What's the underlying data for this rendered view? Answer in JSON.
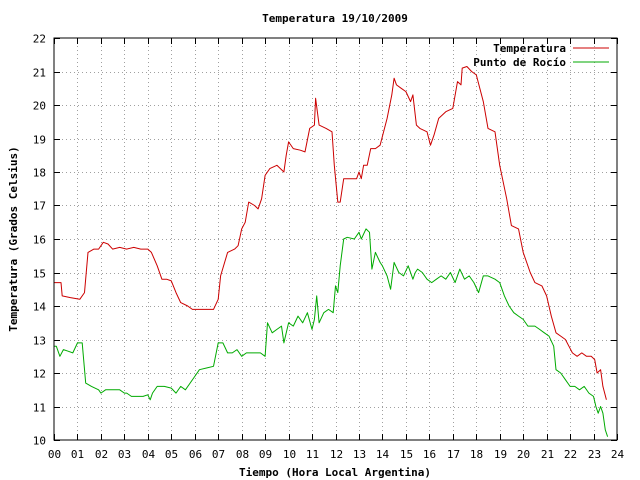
{
  "chart_data": {
    "type": "line",
    "title": "Temperatura 19/10/2009",
    "xlabel": "Tiempo (Hora Local Argentina)",
    "ylabel": "Temperatura (Grados Celsius)",
    "xlim": [
      0,
      24
    ],
    "ylim": [
      10,
      22
    ],
    "x_ticks": [
      "00",
      "01",
      "02",
      "03",
      "04",
      "05",
      "06",
      "07",
      "08",
      "09",
      "10",
      "11",
      "12",
      "13",
      "14",
      "15",
      "16",
      "17",
      "18",
      "19",
      "20",
      "21",
      "22",
      "23",
      "24"
    ],
    "y_ticks": [
      "10",
      "11",
      "12",
      "13",
      "14",
      "15",
      "16",
      "17",
      "18",
      "19",
      "20",
      "21",
      "22"
    ],
    "grid": true,
    "legend_position": "top-right",
    "series": [
      {
        "name": "Temperatura",
        "color": "#cc0000",
        "points": [
          [
            0.0,
            14.7
          ],
          [
            0.3,
            14.7
          ],
          [
            0.35,
            14.3
          ],
          [
            0.7,
            14.25
          ],
          [
            1.1,
            14.2
          ],
          [
            1.3,
            14.4
          ],
          [
            1.45,
            15.6
          ],
          [
            1.7,
            15.7
          ],
          [
            1.9,
            15.7
          ],
          [
            2.1,
            15.9
          ],
          [
            2.3,
            15.85
          ],
          [
            2.5,
            15.7
          ],
          [
            2.8,
            15.75
          ],
          [
            3.1,
            15.7
          ],
          [
            3.4,
            15.75
          ],
          [
            3.7,
            15.7
          ],
          [
            4.0,
            15.7
          ],
          [
            4.15,
            15.6
          ],
          [
            4.4,
            15.2
          ],
          [
            4.6,
            14.8
          ],
          [
            4.8,
            14.8
          ],
          [
            5.0,
            14.75
          ],
          [
            5.2,
            14.4
          ],
          [
            5.4,
            14.1
          ],
          [
            5.7,
            14.0
          ],
          [
            5.9,
            13.9
          ],
          [
            6.2,
            13.9
          ],
          [
            6.5,
            13.9
          ],
          [
            6.8,
            13.9
          ],
          [
            7.0,
            14.2
          ],
          [
            7.1,
            14.9
          ],
          [
            7.4,
            15.6
          ],
          [
            7.7,
            15.7
          ],
          [
            7.85,
            15.8
          ],
          [
            8.0,
            16.3
          ],
          [
            8.15,
            16.5
          ],
          [
            8.3,
            17.1
          ],
          [
            8.55,
            17.0
          ],
          [
            8.7,
            16.9
          ],
          [
            8.85,
            17.2
          ],
          [
            9.0,
            17.9
          ],
          [
            9.2,
            18.1
          ],
          [
            9.5,
            18.2
          ],
          [
            9.65,
            18.1
          ],
          [
            9.8,
            18.0
          ],
          [
            9.9,
            18.5
          ],
          [
            10.0,
            18.9
          ],
          [
            10.2,
            18.7
          ],
          [
            10.5,
            18.65
          ],
          [
            10.7,
            18.6
          ],
          [
            10.9,
            19.3
          ],
          [
            11.1,
            19.4
          ],
          [
            11.15,
            20.2
          ],
          [
            11.3,
            19.4
          ],
          [
            11.6,
            19.3
          ],
          [
            11.85,
            19.2
          ],
          [
            11.95,
            18.2
          ],
          [
            12.1,
            17.1
          ],
          [
            12.2,
            17.1
          ],
          [
            12.35,
            17.8
          ],
          [
            12.6,
            17.8
          ],
          [
            12.9,
            17.8
          ],
          [
            13.0,
            18.0
          ],
          [
            13.1,
            17.8
          ],
          [
            13.2,
            18.2
          ],
          [
            13.35,
            18.2
          ],
          [
            13.5,
            18.7
          ],
          [
            13.7,
            18.7
          ],
          [
            13.9,
            18.8
          ],
          [
            14.2,
            19.6
          ],
          [
            14.4,
            20.3
          ],
          [
            14.5,
            20.8
          ],
          [
            14.6,
            20.6
          ],
          [
            14.8,
            20.5
          ],
          [
            15.0,
            20.4
          ],
          [
            15.2,
            20.1
          ],
          [
            15.3,
            20.3
          ],
          [
            15.45,
            19.4
          ],
          [
            15.6,
            19.3
          ],
          [
            15.9,
            19.2
          ],
          [
            16.05,
            18.8
          ],
          [
            16.2,
            19.1
          ],
          [
            16.4,
            19.6
          ],
          [
            16.7,
            19.8
          ],
          [
            17.0,
            19.9
          ],
          [
            17.2,
            20.7
          ],
          [
            17.35,
            20.6
          ],
          [
            17.4,
            21.1
          ],
          [
            17.6,
            21.15
          ],
          [
            17.8,
            21.0
          ],
          [
            18.0,
            20.9
          ],
          [
            18.3,
            20.1
          ],
          [
            18.5,
            19.3
          ],
          [
            18.8,
            19.2
          ],
          [
            19.0,
            18.2
          ],
          [
            19.3,
            17.2
          ],
          [
            19.5,
            16.4
          ],
          [
            19.8,
            16.3
          ],
          [
            20.0,
            15.6
          ],
          [
            20.3,
            15.0
          ],
          [
            20.5,
            14.7
          ],
          [
            20.8,
            14.6
          ],
          [
            21.0,
            14.3
          ],
          [
            21.2,
            13.7
          ],
          [
            21.4,
            13.2
          ],
          [
            21.6,
            13.1
          ],
          [
            21.8,
            13.0
          ],
          [
            21.95,
            12.8
          ],
          [
            22.1,
            12.6
          ],
          [
            22.3,
            12.5
          ],
          [
            22.5,
            12.6
          ],
          [
            22.7,
            12.5
          ],
          [
            22.9,
            12.5
          ],
          [
            23.05,
            12.4
          ],
          [
            23.15,
            12.0
          ],
          [
            23.3,
            12.1
          ],
          [
            23.4,
            11.6
          ],
          [
            23.55,
            11.2
          ]
        ]
      },
      {
        "name": "Punto de Rocío",
        "color": "#00aa00",
        "points": [
          [
            0.0,
            12.8
          ],
          [
            0.1,
            12.8
          ],
          [
            0.25,
            12.5
          ],
          [
            0.4,
            12.7
          ],
          [
            0.6,
            12.65
          ],
          [
            0.8,
            12.6
          ],
          [
            1.0,
            12.9
          ],
          [
            1.2,
            12.9
          ],
          [
            1.35,
            11.7
          ],
          [
            1.6,
            11.6
          ],
          [
            1.9,
            11.5
          ],
          [
            2.0,
            11.4
          ],
          [
            2.2,
            11.5
          ],
          [
            2.5,
            11.5
          ],
          [
            2.8,
            11.5
          ],
          [
            3.0,
            11.4
          ],
          [
            3.1,
            11.4
          ],
          [
            3.3,
            11.3
          ],
          [
            3.5,
            11.3
          ],
          [
            3.8,
            11.3
          ],
          [
            4.0,
            11.35
          ],
          [
            4.1,
            11.2
          ],
          [
            4.2,
            11.4
          ],
          [
            4.4,
            11.6
          ],
          [
            4.7,
            11.6
          ],
          [
            5.0,
            11.55
          ],
          [
            5.2,
            11.4
          ],
          [
            5.4,
            11.6
          ],
          [
            5.6,
            11.5
          ],
          [
            5.8,
            11.7
          ],
          [
            6.0,
            11.9
          ],
          [
            6.2,
            12.1
          ],
          [
            6.5,
            12.15
          ],
          [
            6.8,
            12.2
          ],
          [
            7.0,
            12.9
          ],
          [
            7.2,
            12.9
          ],
          [
            7.4,
            12.6
          ],
          [
            7.6,
            12.6
          ],
          [
            7.8,
            12.7
          ],
          [
            8.0,
            12.5
          ],
          [
            8.2,
            12.6
          ],
          [
            8.5,
            12.6
          ],
          [
            8.8,
            12.6
          ],
          [
            9.0,
            12.5
          ],
          [
            9.1,
            13.5
          ],
          [
            9.3,
            13.2
          ],
          [
            9.5,
            13.3
          ],
          [
            9.7,
            13.4
          ],
          [
            9.8,
            12.9
          ],
          [
            10.0,
            13.5
          ],
          [
            10.2,
            13.4
          ],
          [
            10.4,
            13.7
          ],
          [
            10.6,
            13.5
          ],
          [
            10.8,
            13.8
          ],
          [
            11.0,
            13.3
          ],
          [
            11.1,
            13.6
          ],
          [
            11.2,
            14.3
          ],
          [
            11.3,
            13.5
          ],
          [
            11.5,
            13.8
          ],
          [
            11.7,
            13.9
          ],
          [
            11.9,
            13.8
          ],
          [
            12.0,
            14.6
          ],
          [
            12.1,
            14.4
          ],
          [
            12.2,
            15.2
          ],
          [
            12.35,
            16.0
          ],
          [
            12.5,
            16.05
          ],
          [
            12.8,
            16.0
          ],
          [
            13.0,
            16.2
          ],
          [
            13.1,
            16.0
          ],
          [
            13.3,
            16.3
          ],
          [
            13.45,
            16.2
          ],
          [
            13.55,
            15.1
          ],
          [
            13.7,
            15.6
          ],
          [
            13.9,
            15.3
          ],
          [
            14.0,
            15.2
          ],
          [
            14.2,
            14.9
          ],
          [
            14.35,
            14.5
          ],
          [
            14.5,
            15.3
          ],
          [
            14.7,
            15.0
          ],
          [
            14.9,
            14.9
          ],
          [
            15.1,
            15.2
          ],
          [
            15.3,
            14.8
          ],
          [
            15.4,
            15.0
          ],
          [
            15.5,
            15.1
          ],
          [
            15.7,
            15.0
          ],
          [
            15.9,
            14.8
          ],
          [
            16.1,
            14.7
          ],
          [
            16.3,
            14.8
          ],
          [
            16.5,
            14.9
          ],
          [
            16.7,
            14.8
          ],
          [
            16.9,
            15.0
          ],
          [
            17.1,
            14.7
          ],
          [
            17.3,
            15.1
          ],
          [
            17.5,
            14.8
          ],
          [
            17.7,
            14.9
          ],
          [
            17.9,
            14.7
          ],
          [
            18.1,
            14.4
          ],
          [
            18.3,
            14.9
          ],
          [
            18.5,
            14.9
          ],
          [
            18.8,
            14.8
          ],
          [
            19.0,
            14.7
          ],
          [
            19.2,
            14.3
          ],
          [
            19.4,
            14.0
          ],
          [
            19.6,
            13.8
          ],
          [
            19.8,
            13.7
          ],
          [
            20.0,
            13.6
          ],
          [
            20.2,
            13.4
          ],
          [
            20.5,
            13.4
          ],
          [
            20.7,
            13.3
          ],
          [
            20.9,
            13.2
          ],
          [
            21.1,
            13.1
          ],
          [
            21.3,
            12.8
          ],
          [
            21.4,
            12.1
          ],
          [
            21.6,
            12.0
          ],
          [
            21.8,
            11.8
          ],
          [
            22.0,
            11.6
          ],
          [
            22.2,
            11.6
          ],
          [
            22.4,
            11.5
          ],
          [
            22.6,
            11.6
          ],
          [
            22.8,
            11.4
          ],
          [
            23.0,
            11.3
          ],
          [
            23.1,
            11.0
          ],
          [
            23.2,
            10.8
          ],
          [
            23.3,
            11.0
          ],
          [
            23.4,
            10.8
          ],
          [
            23.5,
            10.3
          ],
          [
            23.6,
            10.1
          ]
        ]
      }
    ]
  }
}
